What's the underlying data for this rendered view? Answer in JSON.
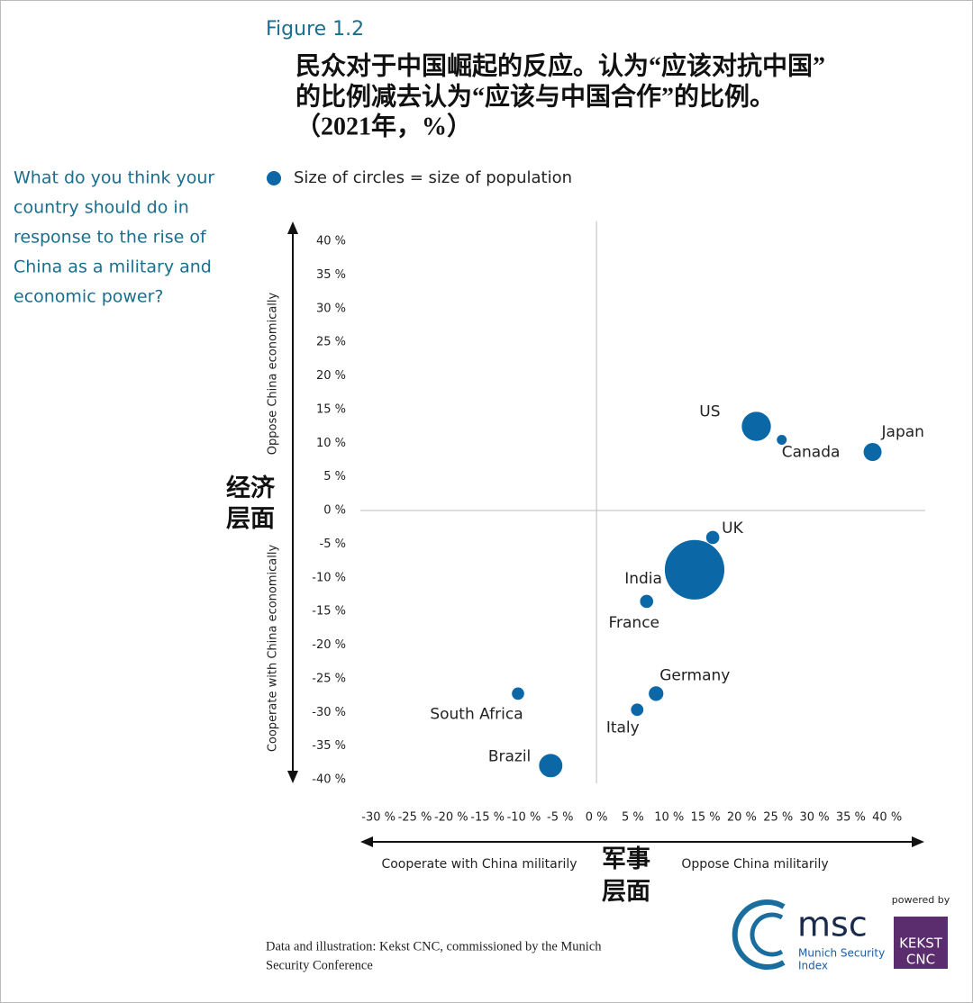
{
  "chart_data": {
    "type": "scatter",
    "figure_label": "Figure 1.2",
    "title": [
      "民众对于中国崛起的反应。认为“应该对抗中国”",
      "的比例减去认为“应该与中国合作”的比例。",
      "（2021年，%）"
    ],
    "question": [
      "What do you think your",
      "country should do in",
      "response to the rise of",
      "China as a military and",
      "economic power?"
    ],
    "legend_text": "Size of circles = size of population",
    "categories": [
      "US",
      "Canada",
      "Japan",
      "UK",
      "India",
      "France",
      "Germany",
      "Italy",
      "South Africa",
      "Brazil"
    ],
    "x": [
      22,
      25.5,
      38,
      16,
      13.5,
      6.9,
      8.2,
      5.6,
      -10.8,
      -6.3
    ],
    "values": [
      12.5,
      10.5,
      8.7,
      -4,
      -8.8,
      -13.5,
      -27.2,
      -29.6,
      -27.2,
      -37.9
    ],
    "sizes": [
      330,
      38,
      126,
      67,
      1380,
      67,
      83,
      60,
      59,
      212
    ],
    "color": "#0b67a6",
    "xlim": [
      -32.5,
      45
    ],
    "ylim": [
      -42,
      43
    ],
    "xticks": [
      {
        "value": -30,
        "label": "-30 %"
      },
      {
        "value": -25,
        "label": "-25 %"
      },
      {
        "value": -20,
        "label": "-20 %"
      },
      {
        "value": -15,
        "label": "-15 %"
      },
      {
        "value": -10,
        "label": "-10 %"
      },
      {
        "value": -5,
        "label": "-5 %"
      },
      {
        "value": 0,
        "label": "0 %"
      },
      {
        "value": 5,
        "label": "5 %"
      },
      {
        "value": 10,
        "label": "10 %"
      },
      {
        "value": 15,
        "label": "15 %"
      },
      {
        "value": 20,
        "label": "20 %"
      },
      {
        "value": 25,
        "label": "25 %"
      },
      {
        "value": 30,
        "label": "30 %"
      },
      {
        "value": 35,
        "label": "35 %"
      },
      {
        "value": 40,
        "label": "40 %"
      }
    ],
    "yticks": [
      {
        "value": 40,
        "label": "40 %"
      },
      {
        "value": 35,
        "label": "35 %"
      },
      {
        "value": 30,
        "label": "30 %"
      },
      {
        "value": 25,
        "label": "25 %"
      },
      {
        "value": 20,
        "label": "20 %"
      },
      {
        "value": 15,
        "label": "15 %"
      },
      {
        "value": 10,
        "label": "10 %"
      },
      {
        "value": 5,
        "label": "5 %"
      },
      {
        "value": 0,
        "label": "0 %"
      },
      {
        "value": -5,
        "label": "-5 %"
      },
      {
        "value": -10,
        "label": "-10 %"
      },
      {
        "value": -15,
        "label": "-15 %"
      },
      {
        "value": -20,
        "label": "-20 %"
      },
      {
        "value": -25,
        "label": "-25 %"
      },
      {
        "value": -30,
        "label": "-30 %"
      },
      {
        "value": -35,
        "label": "-35 %"
      },
      {
        "value": -40,
        "label": "-40 %"
      }
    ],
    "ylabel_top": "Oppose China economically",
    "ylabel_bottom": "Cooperate with China economically",
    "ylabel_cn": [
      "经济",
      "层面"
    ],
    "xlabel_left": "Cooperate with China militarily",
    "xlabel_right": "Oppose China militarily",
    "xlabel_cn": [
      "军事",
      "层面"
    ],
    "source": [
      "Data and illustration: Kekst CNC, commissioned by the Munich",
      "Security Conference"
    ],
    "branding": {
      "msc": "msc",
      "msc_sub": [
        "Munich Security",
        "Index"
      ],
      "powered_by": "powered by",
      "kekst": [
        "KEKST",
        "CNC"
      ]
    }
  }
}
